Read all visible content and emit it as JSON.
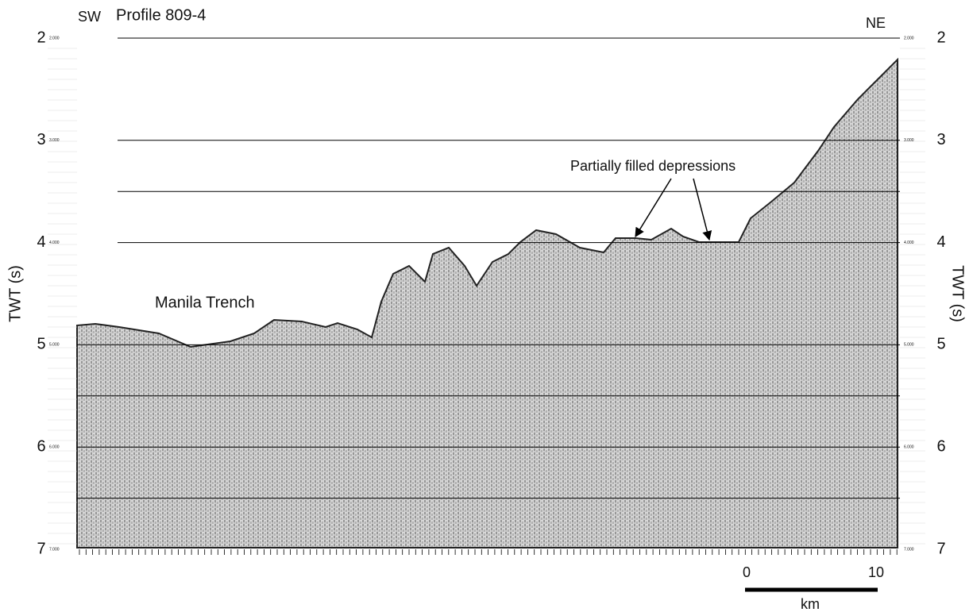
{
  "header": {
    "title": "Profile 809-4",
    "left_end": "SW",
    "right_end": "NE"
  },
  "axes": {
    "left_label": "TWT (s)",
    "right_label": "TWT (s)",
    "ticks": [
      "2",
      "3",
      "4",
      "5",
      "6",
      "7"
    ],
    "minor_labels": [
      "2.000",
      "3.000",
      "4.000",
      "5.000",
      "6.000",
      "7.000"
    ]
  },
  "annotations": {
    "trench": "Manila Trench",
    "depressions": "Partially filled depressions"
  },
  "scale_bar": {
    "start": "0",
    "end": "10",
    "unit": "km"
  }
}
